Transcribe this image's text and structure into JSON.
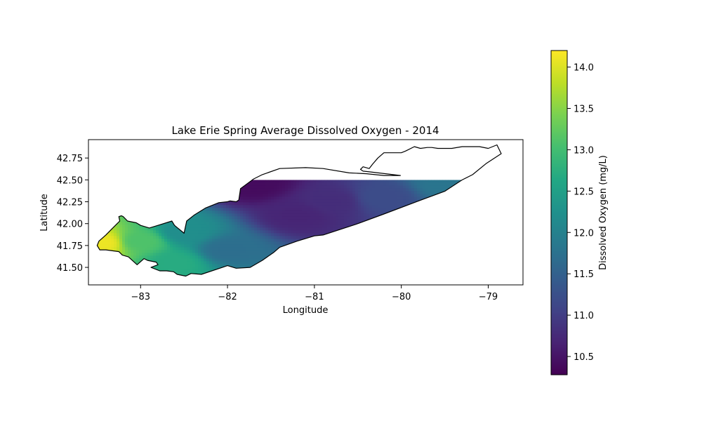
{
  "chart_data": {
    "type": "heatmap",
    "title": "Lake Erie Spring Average Dissolved Oxygen - 2014",
    "xlabel": "Longitude",
    "ylabel": "Latitude",
    "xlim": [
      -83.6,
      -78.6
    ],
    "ylim": [
      41.3,
      42.96
    ],
    "x_ticks": [
      -83,
      -82,
      -81,
      -80,
      -79
    ],
    "x_tick_labels": [
      "−83",
      "−82",
      "−81",
      "−80",
      "−79"
    ],
    "y_ticks": [
      41.5,
      41.75,
      42.0,
      42.25,
      42.5,
      42.75
    ],
    "y_tick_labels": [
      "41.50",
      "41.75",
      "42.00",
      "42.25",
      "42.50",
      "42.75"
    ],
    "grid": false,
    "colormap": "viridis",
    "colorbar": {
      "label": "Dissolved Oxygen (mg/L)",
      "range": [
        10.28,
        14.2
      ],
      "ticks": [
        10.5,
        11.0,
        11.5,
        12.0,
        12.5,
        13.0,
        13.5,
        14.0
      ],
      "tick_labels": [
        "10.5",
        "11.0",
        "11.5",
        "12.0",
        "12.5",
        "13.0",
        "13.5",
        "14.0"
      ]
    },
    "interpolated_extent_lat_max": 42.5,
    "dissolved_oxygen_samples": [
      {
        "lon": -83.45,
        "lat": 41.78,
        "value": 14.1
      },
      {
        "lon": -83.0,
        "lat": 41.8,
        "value": 13.1
      },
      {
        "lon": -82.6,
        "lat": 41.55,
        "value": 12.7
      },
      {
        "lon": -82.5,
        "lat": 41.9,
        "value": 12.2
      },
      {
        "lon": -82.0,
        "lat": 41.7,
        "value": 11.7
      },
      {
        "lon": -81.7,
        "lat": 42.45,
        "value": 10.4
      },
      {
        "lon": -81.2,
        "lat": 42.1,
        "value": 10.7
      },
      {
        "lon": -80.8,
        "lat": 42.25,
        "value": 10.8
      },
      {
        "lon": -80.2,
        "lat": 42.3,
        "value": 11.2
      },
      {
        "lon": -79.5,
        "lat": 42.45,
        "value": 11.8
      }
    ],
    "shoreline": [
      [
        -83.47,
        41.7
      ],
      [
        -83.4,
        41.7
      ],
      [
        -83.25,
        41.68
      ],
      [
        -83.21,
        41.64
      ],
      [
        -83.14,
        41.62
      ],
      [
        -83.04,
        41.53
      ],
      [
        -82.96,
        41.6
      ],
      [
        -82.92,
        41.58
      ],
      [
        -82.82,
        41.56
      ],
      [
        -82.8,
        41.53
      ],
      [
        -82.88,
        41.5
      ],
      [
        -82.78,
        41.46
      ],
      [
        -82.7,
        41.46
      ],
      [
        -82.62,
        41.45
      ],
      [
        -82.58,
        41.42
      ],
      [
        -82.48,
        41.4
      ],
      [
        -82.42,
        41.43
      ],
      [
        -82.3,
        41.42
      ],
      [
        -82.0,
        41.52
      ],
      [
        -81.9,
        41.49
      ],
      [
        -81.74,
        41.5
      ],
      [
        -81.6,
        41.58
      ],
      [
        -81.47,
        41.67
      ],
      [
        -81.4,
        41.73
      ],
      [
        -81.2,
        41.8
      ],
      [
        -81.0,
        41.86
      ],
      [
        -80.9,
        41.87
      ],
      [
        -80.5,
        42.0
      ],
      [
        -80.2,
        42.11
      ],
      [
        -79.8,
        42.26
      ],
      [
        -79.5,
        42.37
      ],
      [
        -79.3,
        42.5
      ],
      [
        -79.18,
        42.56
      ],
      [
        -79.02,
        42.69
      ],
      [
        -78.85,
        42.8
      ],
      [
        -78.9,
        42.9
      ],
      [
        -79.0,
        42.86
      ],
      [
        -79.1,
        42.88
      ],
      [
        -79.3,
        42.88
      ],
      [
        -79.42,
        42.86
      ],
      [
        -79.5,
        42.86
      ],
      [
        -79.55,
        42.86
      ],
      [
        -79.58,
        42.86
      ],
      [
        -79.65,
        42.87
      ],
      [
        -79.7,
        42.87
      ],
      [
        -79.78,
        42.86
      ],
      [
        -79.85,
        42.88
      ],
      [
        -79.95,
        42.83
      ],
      [
        -80.0,
        42.81
      ],
      [
        -80.2,
        42.81
      ],
      [
        -80.27,
        42.75
      ],
      [
        -80.33,
        42.68
      ],
      [
        -80.37,
        42.63
      ],
      [
        -80.44,
        42.65
      ],
      [
        -80.47,
        42.62
      ],
      [
        -80.44,
        42.6
      ],
      [
        -80.35,
        42.59
      ],
      [
        -80.01,
        42.55
      ],
      [
        -80.2,
        42.55
      ],
      [
        -80.4,
        42.57
      ],
      [
        -80.6,
        42.58
      ],
      [
        -80.9,
        42.63
      ],
      [
        -81.1,
        42.64
      ],
      [
        -81.4,
        42.63
      ],
      [
        -81.6,
        42.56
      ],
      [
        -81.7,
        42.51
      ],
      [
        -81.85,
        42.4
      ],
      [
        -81.87,
        42.27
      ],
      [
        -81.9,
        42.25
      ],
      [
        -81.97,
        42.26
      ],
      [
        -82.0,
        42.25
      ],
      [
        -82.1,
        42.24
      ],
      [
        -82.25,
        42.18
      ],
      [
        -82.38,
        42.1
      ],
      [
        -82.47,
        42.03
      ],
      [
        -82.5,
        41.89
      ],
      [
        -82.61,
        41.98
      ],
      [
        -82.64,
        42.03
      ],
      [
        -82.8,
        41.98
      ],
      [
        -82.9,
        41.95
      ],
      [
        -83.0,
        41.98
      ],
      [
        -83.05,
        42.01
      ],
      [
        -83.15,
        42.03
      ],
      [
        -83.2,
        42.08
      ],
      [
        -83.22,
        42.09
      ],
      [
        -83.25,
        42.08
      ],
      [
        -83.24,
        42.03
      ],
      [
        -83.27,
        42.0
      ],
      [
        -83.33,
        41.94
      ],
      [
        -83.4,
        41.87
      ],
      [
        -83.48,
        41.8
      ],
      [
        -83.5,
        41.75
      ]
    ]
  }
}
